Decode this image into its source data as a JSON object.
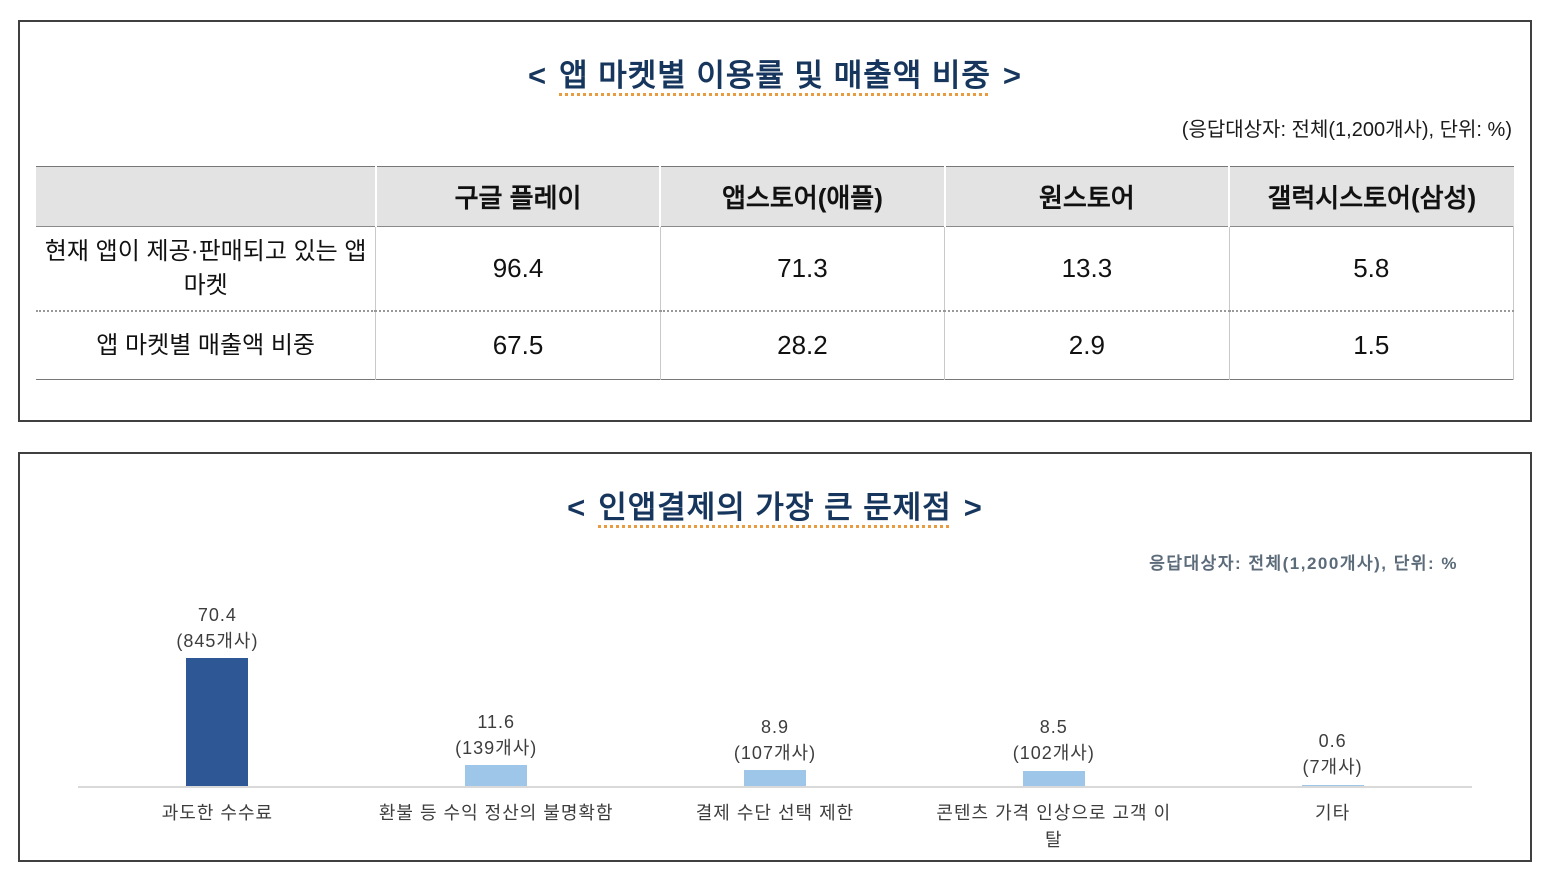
{
  "chart_data": [
    {
      "type": "table",
      "title_open": "<",
      "title": "앱 마켓별 이용률 및 매출액 비중",
      "title_close": ">",
      "note": "(응답대상자: 전체(1,200개사), 단위: %)",
      "unit": "%",
      "columns": [
        "구글 플레이",
        "앱스토어(애플)",
        "원스토어",
        "갤럭시스토어(삼성)"
      ],
      "rows": [
        {
          "label": "현재 앱이 제공·판매되고 있는 앱 마켓",
          "values": [
            96.4,
            71.3,
            13.3,
            5.8
          ]
        },
        {
          "label": "앱 마켓별 매출액 비중",
          "values": [
            67.5,
            28.2,
            2.9,
            1.5
          ]
        }
      ]
    },
    {
      "type": "bar",
      "title_open": "<",
      "title": "인앱결제의 가장 큰 문제점",
      "title_close": ">",
      "note": "응답대상자: 전체(1,200개사), 단위: %",
      "unit": "%",
      "grid": false,
      "legend": false,
      "ylim": [
        0,
        80
      ],
      "categories": [
        "과도한 수수료",
        "환불 등 수익 정산의 불명확함",
        "결제 수단 선택 제한",
        "콘텐츠 가격 인상으로 고객 이탈",
        "기타"
      ],
      "values": [
        70.4,
        11.6,
        8.9,
        8.5,
        0.6
      ],
      "counts": [
        "(845개사)",
        "(139개사)",
        "(107개사)",
        "(102개사)",
        "(7개사)"
      ],
      "bar_colors": [
        "#2d5795",
        "#9dc6e9",
        "#9dc6e9",
        "#9dc6e9",
        "#9dc6e9"
      ],
      "colors": {
        "primary_bar": "#2d5795",
        "secondary_bar": "#9dc6e9",
        "title": "#17365d",
        "baseline": "#d9d9d9"
      }
    }
  ]
}
